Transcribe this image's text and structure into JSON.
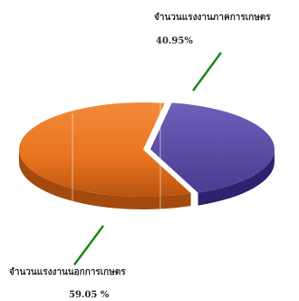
{
  "chart_data": {
    "type": "pie",
    "title": "",
    "slices": [
      {
        "label": "จำนวนแรงงานภาคการเกษตร",
        "value": 40.95,
        "value_label": "40.95%",
        "color": "#5b4aa3",
        "color_dark": "#2e2270"
      },
      {
        "label": "จำนวนแรงงานนอกการเกษตร",
        "value": 59.05,
        "value_label": "59.05 %",
        "color": "#e8731f",
        "color_dark": "#a44a0e"
      }
    ],
    "leader_line_color": "#1a8a1a",
    "legend": "none",
    "style": "3d-tilted-exploded"
  }
}
